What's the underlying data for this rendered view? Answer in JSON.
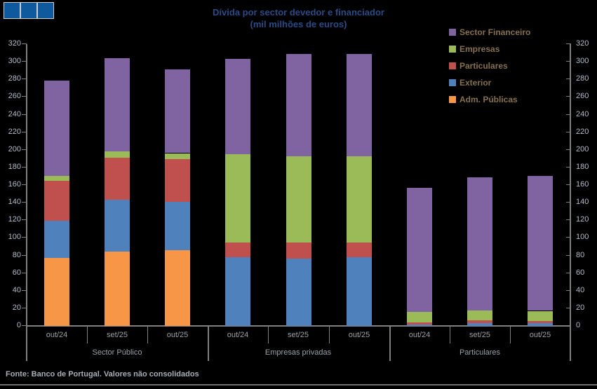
{
  "window": {
    "logo_squares": 3,
    "logo_color": "#0E5A9C"
  },
  "title": {
    "line1": "Dívida por sector devedor e financiador",
    "line2": "(mil milhões de euros)"
  },
  "legend": {
    "position": "top-right",
    "items": [
      {
        "label": "Sector Financeiro",
        "color": "#8064A2"
      },
      {
        "label": "Empresas",
        "color": "#9BBB59"
      },
      {
        "label": "Particulares",
        "color": "#C0504D"
      },
      {
        "label": "Exterior",
        "color": "#4F81BD"
      },
      {
        "label": "Adm. Públicas",
        "color": "#F79646"
      }
    ]
  },
  "footer": {
    "source_note": "Fonte: Banco de Portugal. Valores não consolidados"
  },
  "chart_data": {
    "type": "bar",
    "stacked": true,
    "title": "Dívida por sector devedor e financiador",
    "subtitle": "(mil milhões de euros)",
    "unit": "mil milhões de euros",
    "ylim": [
      0,
      320
    ],
    "ytick_step": 20,
    "grid": false,
    "dual_value_axes": true,
    "legend_position": "top-right",
    "groups": [
      {
        "label": "Sector Público",
        "categories": [
          "out/24",
          "set/25",
          "out/25"
        ]
      },
      {
        "label": "Empresas privadas",
        "categories": [
          "out/24",
          "set/25",
          "out/25"
        ]
      },
      {
        "label": "Particulares",
        "categories": [
          "out/24",
          "set/25",
          "out/25"
        ]
      }
    ],
    "categories": [
      "out/24",
      "set/25",
      "out/25",
      "out/24",
      "set/25",
      "out/25",
      "out/24",
      "set/25",
      "out/25"
    ],
    "series": [
      {
        "name": "Adm. Públicas",
        "color": "#F79646",
        "values": [
          77,
          84,
          86,
          0,
          0,
          0,
          0,
          0,
          0
        ]
      },
      {
        "name": "Exterior",
        "color": "#4F81BD",
        "values": [
          43,
          59,
          55,
          78,
          77,
          78,
          2,
          3,
          3
        ]
      },
      {
        "name": "Particulares",
        "color": "#C0504D",
        "values": [
          45,
          48,
          49,
          17,
          18,
          17,
          2,
          3,
          3
        ]
      },
      {
        "name": "Empresas",
        "color": "#9BBB59",
        "values": [
          6,
          7,
          6,
          100,
          98,
          98,
          12,
          12,
          11
        ]
      },
      {
        "name": "Sector Financeiro",
        "color": "#8064A2",
        "values": [
          108,
          106,
          95,
          108,
          116,
          116,
          141,
          151,
          153
        ]
      }
    ],
    "totals": [
      279,
      304,
      291,
      303,
      309,
      309,
      157,
      169,
      170
    ]
  },
  "colors": {
    "background": "#000000",
    "axis": "#808080",
    "title_text": "#2B4A86",
    "value_axis_text": "#B3BCC9",
    "category_axis_text": "#9BA1A7",
    "legend_text": "#86704E",
    "footer_text": "#A9AFB6"
  }
}
